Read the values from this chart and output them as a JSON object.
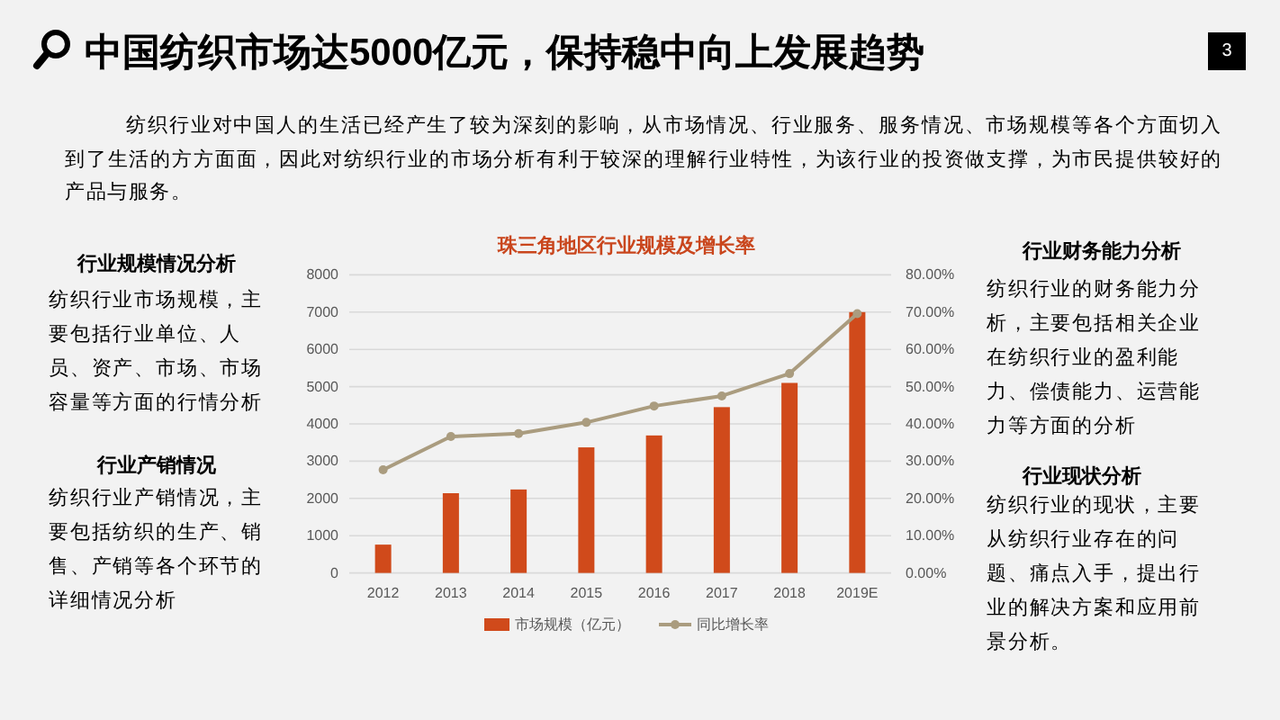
{
  "chart_data": {
    "type": "bar",
    "title": "中国纺织市场达5000亿元，保持稳中向上发展趋势",
    "subtitle": "珠三角地区行业规模及增长率",
    "annotations": [
      "纺织行业对中国人的生活已经产生了较为深刻的影响，从市场情况、行业服务、服务情况、市场规模等各个方面切入到了生活的方方面面，因此对纺织行业的市场分析有利于较深的理解行业特性，为该行业的投资做支撑，为市民提供较好的产品与服务。",
      "行业规模情况分析",
      "纺织行业市场规模，主要包括行业单位、人员、资产、市场、市场容量等方面的行情分析",
      "行业产销情况",
      "纺织行业产销情况，主要包括纺织的生产、销售、产销等各个环节的详细情况分析",
      "行业财务能力分析",
      "纺织行业的财务能力分析，主要包括相关企业在纺织行业的盈利能力、偿债能力、运营能力等方面的分析",
      "行业现状分析",
      "纺织行业的现状，主要从纺织行业存在的问题、痛点入手，提出行业的解决方案和应用前景分析。",
      "3"
    ],
    "categories": [
      "2012",
      "2013",
      "2014",
      "2015",
      "2016",
      "2017",
      "2018",
      "2019E"
    ],
    "series": [
      {
        "name": "市场规模（亿元）",
        "color": "#d04a1b",
        "values": [
          760,
          2140,
          2240,
          3370,
          3690,
          4450,
          5100,
          7000
        ]
      },
      {
        "name": "同比增长率",
        "type": "line",
        "axis": "y2",
        "color": "#aa9c7f",
        "marker": "circle",
        "values": [
          27.7,
          36.6,
          37.4,
          40.4,
          44.8,
          47.5,
          53.5,
          69.6
        ]
      }
    ],
    "ylim": [
      0,
      8000
    ],
    "yticks": [
      0,
      1000,
      2000,
      3000,
      4000,
      5000,
      6000,
      7000,
      8000
    ],
    "y2lim": [
      0,
      80
    ],
    "y2ticks": [
      {
        "value": 0,
        "label": "0.00%"
      },
      {
        "value": 10,
        "label": "10.00%"
      },
      {
        "value": 20,
        "label": "20.00%"
      },
      {
        "value": 30,
        "label": "30.00%"
      },
      {
        "value": 40,
        "label": "40.00%"
      },
      {
        "value": 50,
        "label": "50.00%"
      },
      {
        "value": 60,
        "label": "60.00%"
      },
      {
        "value": 70,
        "label": "70.00%"
      },
      {
        "value": 80,
        "label": "80.00%"
      }
    ],
    "grid": "y",
    "legend": "bottom"
  }
}
